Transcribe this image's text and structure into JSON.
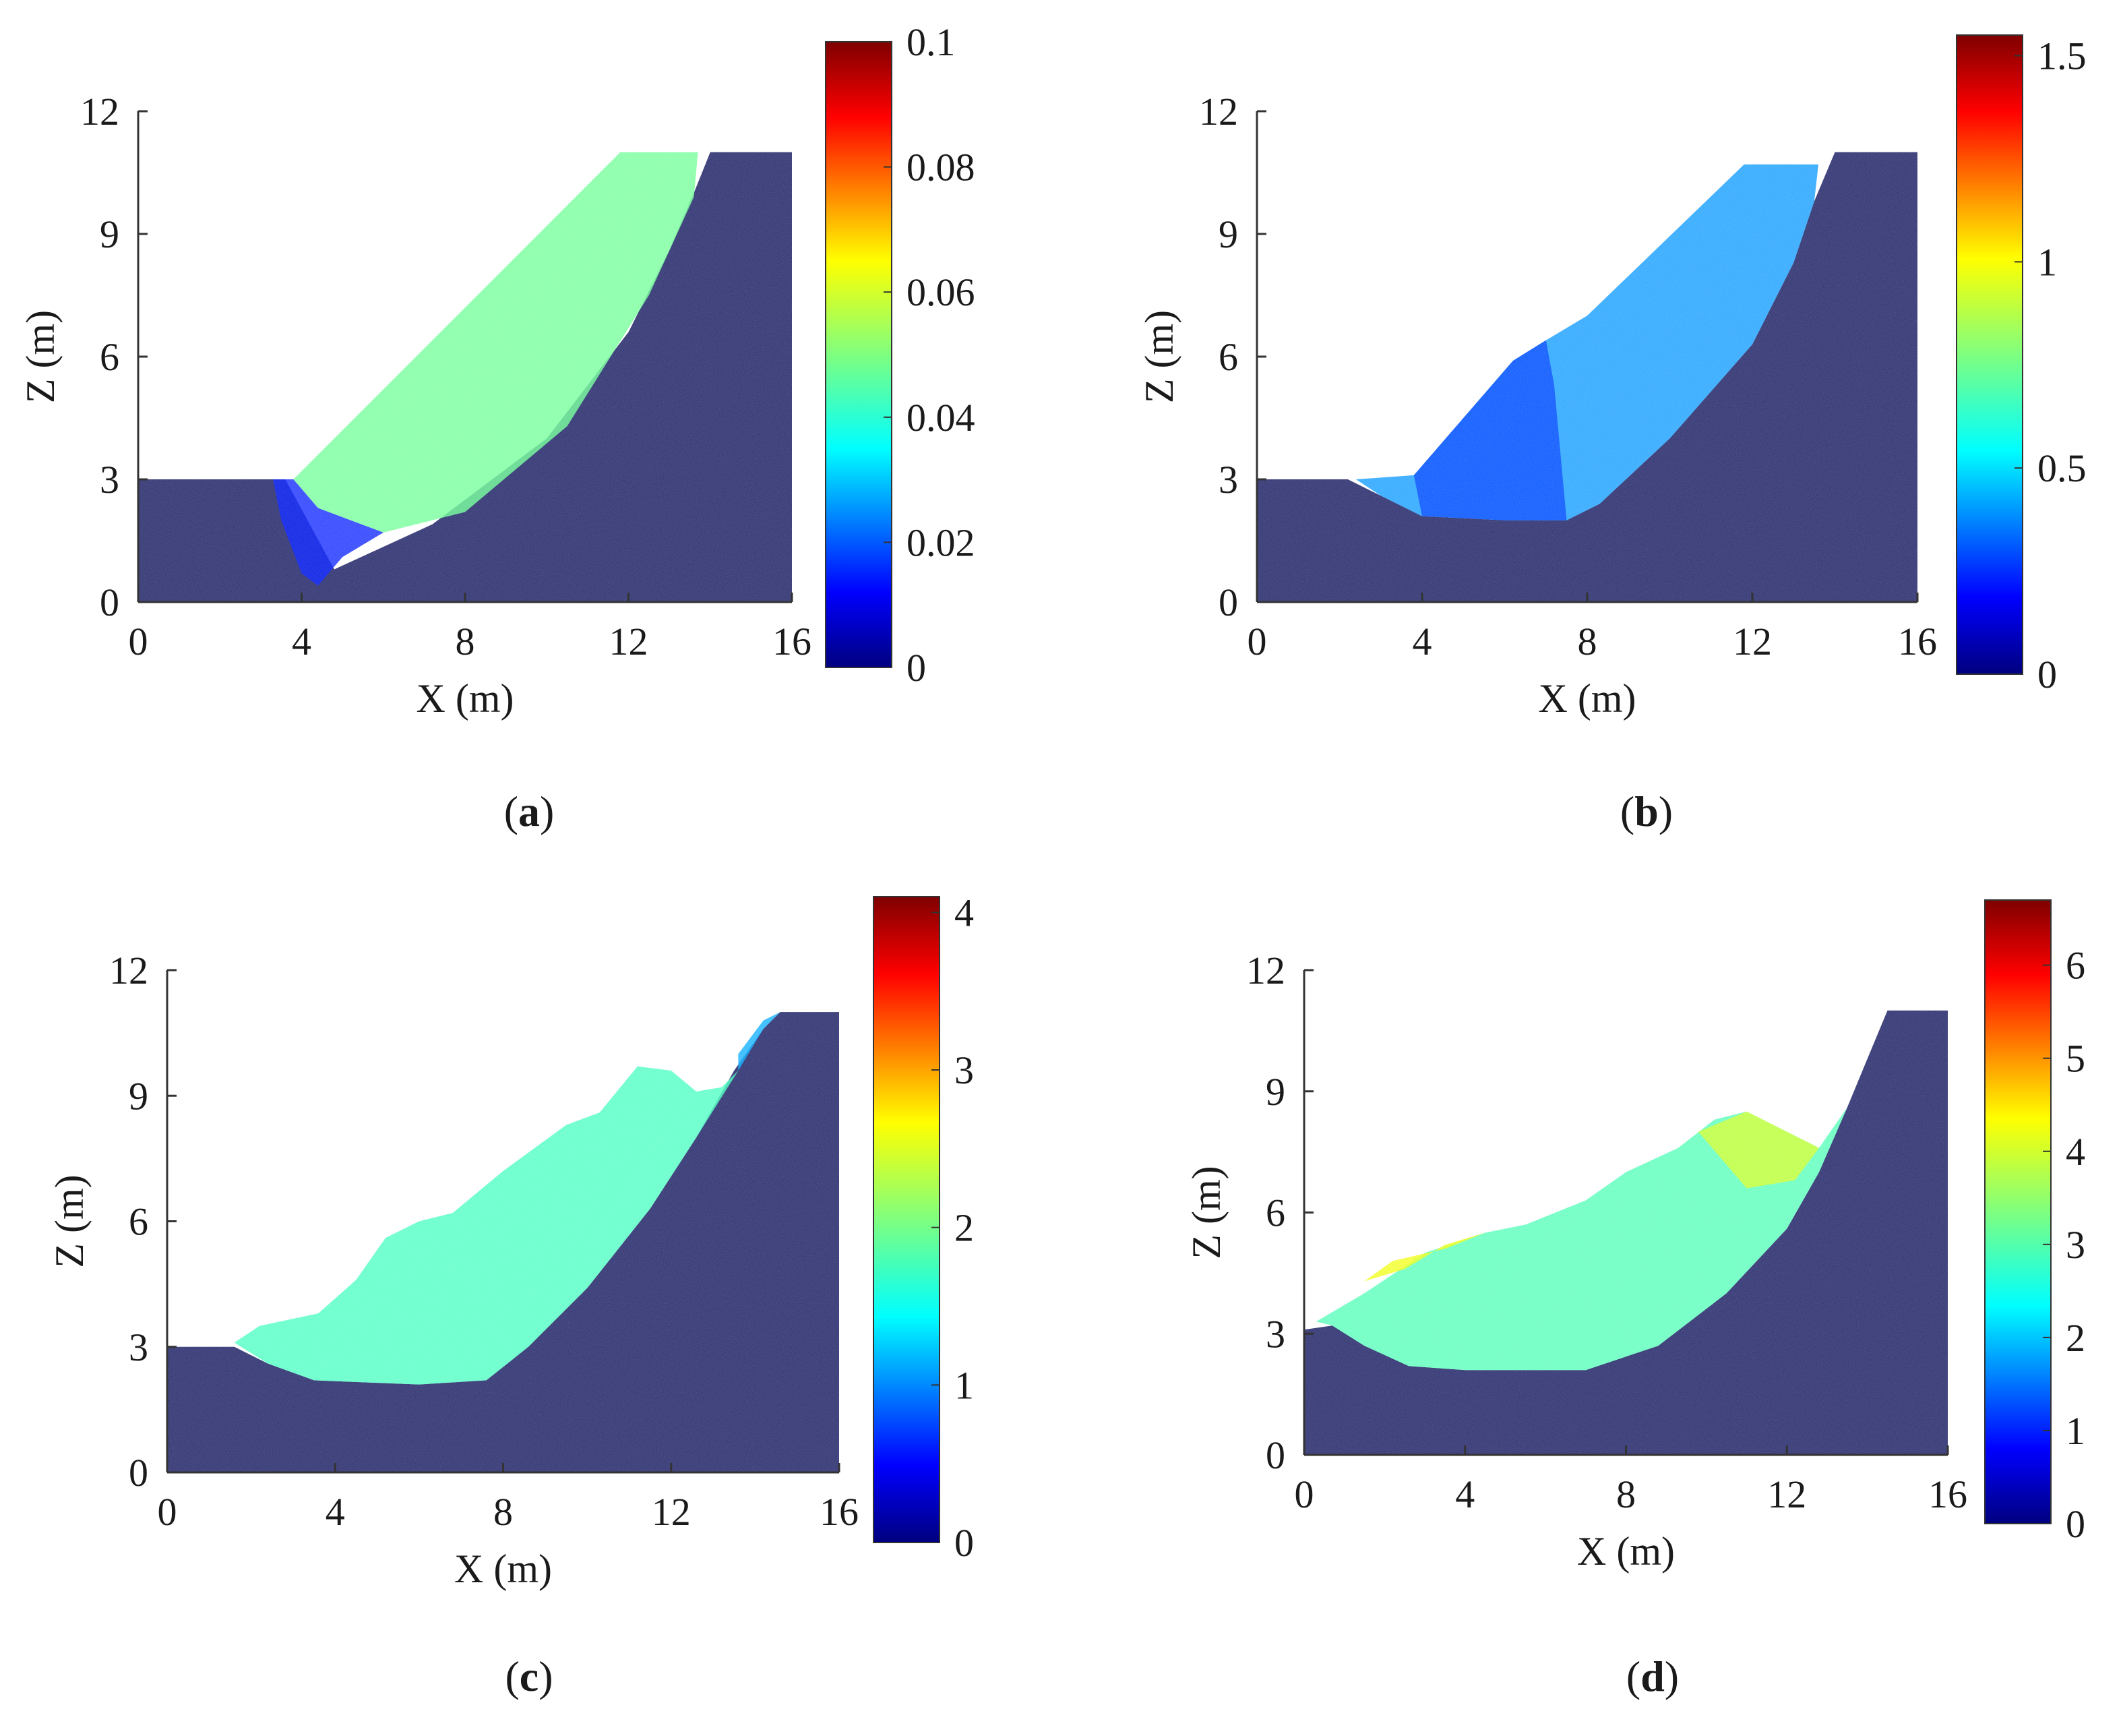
{
  "figure": {
    "colors": {
      "background": "#ffffff",
      "axis": "#333333",
      "stable_soil": "#2b2e6e"
    }
  },
  "chart_data": [
    {
      "type": "heatmap",
      "panel": "a",
      "caption": {
        "open": "(",
        "letter": "a",
        "close": ")"
      },
      "xlabel": "X (m)",
      "ylabel": "Z (m)",
      "xlim": [
        0,
        16
      ],
      "ylim": [
        0,
        12
      ],
      "xticks": [
        "0",
        "4",
        "8",
        "12",
        "16"
      ],
      "yticks": [
        "0",
        "3",
        "6",
        "9",
        "12"
      ],
      "colorbar": {
        "min": 0,
        "max": 0.1,
        "ticks": [
          "0",
          "0.02",
          "0.04",
          "0.06",
          "0.08",
          "0.1"
        ],
        "colormap": "jet"
      },
      "stable_profile": [
        [
          0,
          0
        ],
        [
          0,
          3
        ],
        [
          3.6,
          3
        ],
        [
          4.8,
          0.8
        ],
        [
          7.2,
          1.9
        ],
        [
          10,
          4
        ],
        [
          12,
          6.6
        ],
        [
          13,
          8.6
        ],
        [
          13.6,
          10
        ],
        [
          14,
          11
        ],
        [
          16,
          11
        ],
        [
          16,
          0
        ]
      ],
      "slide_regions": [
        {
          "value": 0.048,
          "polygon": [
            [
              3.8,
              3
            ],
            [
              11.8,
              11
            ],
            [
              13.7,
              11
            ],
            [
              13.6,
              9.9
            ],
            [
              12.5,
              7.5
            ],
            [
              10.5,
              4.3
            ],
            [
              8,
              2.2
            ],
            [
              6,
              1.7
            ],
            [
              4.4,
              2.3
            ]
          ]
        },
        {
          "value": 0.015,
          "polygon": [
            [
              3.3,
              3
            ],
            [
              3.8,
              3
            ],
            [
              4.4,
              2.3
            ],
            [
              6,
              1.7
            ],
            [
              5,
              1.1
            ],
            [
              4.4,
              0.4
            ],
            [
              4,
              0.7
            ],
            [
              3.5,
              2
            ]
          ]
        }
      ]
    },
    {
      "type": "heatmap",
      "panel": "b",
      "caption": {
        "open": "(",
        "letter": "b",
        "close": ")"
      },
      "xlabel": "X (m)",
      "ylabel": "Z (m)",
      "xlim": [
        0,
        16
      ],
      "ylim": [
        0,
        12
      ],
      "xticks": [
        "0",
        "4",
        "8",
        "12",
        "16"
      ],
      "yticks": [
        "0",
        "3",
        "6",
        "9",
        "12"
      ],
      "colorbar": {
        "min": 0,
        "max": 1.55,
        "ticks": [
          "0",
          "0.5",
          "1",
          "1.5"
        ],
        "colormap": "jet"
      },
      "stable_profile": [
        [
          0,
          0
        ],
        [
          0,
          3
        ],
        [
          2.2,
          3
        ],
        [
          3,
          2.6
        ],
        [
          4,
          2.1
        ],
        [
          6,
          2
        ],
        [
          7.5,
          2
        ],
        [
          8.3,
          2.4
        ],
        [
          10,
          4
        ],
        [
          12,
          6.3
        ],
        [
          13,
          8.3
        ],
        [
          13.5,
          9.8
        ],
        [
          14,
          11
        ],
        [
          16,
          11
        ],
        [
          16,
          0
        ]
      ],
      "slide_regions": [
        {
          "value": 0.42,
          "polygon": [
            [
              2.4,
              3
            ],
            [
              3.8,
              3.1
            ],
            [
              6.2,
              5.9
            ],
            [
              7,
              6.4
            ],
            [
              8,
              7
            ],
            [
              11.8,
              10.7
            ],
            [
              13.6,
              10.7
            ],
            [
              13.5,
              9.8
            ],
            [
              13,
              8.3
            ],
            [
              12,
              6.3
            ],
            [
              10,
              4
            ],
            [
              8.3,
              2.4
            ],
            [
              7.5,
              2
            ],
            [
              6,
              2
            ],
            [
              4,
              2.1
            ],
            [
              3,
              2.6
            ]
          ]
        },
        {
          "value": 0.3,
          "polygon": [
            [
              3.8,
              3.1
            ],
            [
              6.2,
              5.9
            ],
            [
              7,
              6.4
            ],
            [
              7.2,
              5.3
            ],
            [
              7.5,
              2
            ],
            [
              6,
              2
            ],
            [
              4,
              2.1
            ]
          ]
        }
      ]
    },
    {
      "type": "heatmap",
      "panel": "c",
      "caption": {
        "open": "(",
        "letter": "c",
        "close": ")"
      },
      "xlabel": "X (m)",
      "ylabel": "Z (m)",
      "xlim": [
        0,
        16
      ],
      "ylim": [
        0,
        12
      ],
      "xticks": [
        "0",
        "4",
        "8",
        "12",
        "16"
      ],
      "yticks": [
        "0",
        "3",
        "6",
        "9",
        "12"
      ],
      "colorbar": {
        "min": 0,
        "max": 4.1,
        "ticks": [
          "0",
          "1",
          "2",
          "3",
          "4"
        ],
        "colormap": "jet"
      },
      "stable_profile": [
        [
          0,
          0
        ],
        [
          0,
          3
        ],
        [
          1.6,
          3
        ],
        [
          2.4,
          2.6
        ],
        [
          3.5,
          2.2
        ],
        [
          6,
          2.1
        ],
        [
          7.6,
          2.2
        ],
        [
          8.6,
          3
        ],
        [
          10,
          4.4
        ],
        [
          11.5,
          6.3
        ],
        [
          12.6,
          8
        ],
        [
          13.5,
          9.6
        ],
        [
          14.2,
          10.6
        ],
        [
          14.6,
          11
        ],
        [
          16,
          11
        ],
        [
          16,
          0
        ]
      ],
      "slide_regions": [
        {
          "value": 1.8,
          "polygon": [
            [
              1.6,
              3.1
            ],
            [
              2.2,
              3.5
            ],
            [
              3.6,
              3.8
            ],
            [
              4.5,
              4.6
            ],
            [
              5.2,
              5.6
            ],
            [
              6,
              6
            ],
            [
              6.8,
              6.2
            ],
            [
              8,
              7.2
            ],
            [
              9.5,
              8.3
            ],
            [
              10.3,
              8.6
            ],
            [
              11.2,
              9.7
            ],
            [
              12,
              9.6
            ],
            [
              12.6,
              9.1
            ],
            [
              13.2,
              9.2
            ],
            [
              13.6,
              9.6
            ],
            [
              12.6,
              8
            ],
            [
              11.5,
              6.3
            ],
            [
              10,
              4.4
            ],
            [
              8.6,
              3
            ],
            [
              7.6,
              2.2
            ],
            [
              6,
              2.1
            ],
            [
              3.5,
              2.2
            ],
            [
              2.4,
              2.6
            ]
          ]
        },
        {
          "value": 1.2,
          "polygon": [
            [
              13.6,
              10
            ],
            [
              14.2,
              10.8
            ],
            [
              14.6,
              11
            ],
            [
              14.2,
              10.6
            ],
            [
              13.6,
              9.6
            ]
          ]
        }
      ]
    },
    {
      "type": "heatmap",
      "panel": "d",
      "caption": {
        "open": "(",
        "letter": "d",
        "close": ")"
      },
      "xlabel": "X (m)",
      "ylabel": "Z (m)",
      "xlim": [
        0,
        16
      ],
      "ylim": [
        0,
        12
      ],
      "xticks": [
        "0",
        "4",
        "8",
        "12",
        "16"
      ],
      "yticks": [
        "0",
        "3",
        "6",
        "9",
        "12"
      ],
      "colorbar": {
        "min": 0,
        "max": 6.7,
        "ticks": [
          "0",
          "1",
          "2",
          "3",
          "4",
          "5",
          "6"
        ],
        "colormap": "jet"
      },
      "stable_profile": [
        [
          0,
          0
        ],
        [
          0,
          3.1
        ],
        [
          0.7,
          3.2
        ],
        [
          1.5,
          2.7
        ],
        [
          2.6,
          2.2
        ],
        [
          4,
          2.1
        ],
        [
          7,
          2.1
        ],
        [
          8.8,
          2.7
        ],
        [
          10.5,
          4
        ],
        [
          12,
          5.6
        ],
        [
          12.8,
          7
        ],
        [
          13.5,
          8.6
        ],
        [
          14,
          9.8
        ],
        [
          14.5,
          11
        ],
        [
          16,
          11
        ],
        [
          16,
          0
        ]
      ],
      "slide_regions": [
        {
          "value": 3.0,
          "polygon": [
            [
              0.3,
              3.3
            ],
            [
              1.5,
              4
            ],
            [
              3,
              5
            ],
            [
              4.5,
              5.5
            ],
            [
              5.5,
              5.7
            ],
            [
              7,
              6.3
            ],
            [
              8,
              7
            ],
            [
              9.3,
              7.6
            ],
            [
              10.2,
              8.3
            ],
            [
              11,
              8.5
            ],
            [
              12,
              8
            ],
            [
              12.8,
              7.6
            ],
            [
              13.5,
              8.6
            ],
            [
              12.8,
              7
            ],
            [
              12,
              5.6
            ],
            [
              10.5,
              4
            ],
            [
              8.8,
              2.7
            ],
            [
              7,
              2.1
            ],
            [
              4,
              2.1
            ],
            [
              2.6,
              2.2
            ],
            [
              1.5,
              2.7
            ],
            [
              0.7,
              3.2
            ]
          ]
        },
        {
          "value": 4.1,
          "polygon": [
            [
              1.5,
              4.3
            ],
            [
              2.5,
              4.6
            ],
            [
              3.5,
              5.2
            ],
            [
              4.5,
              5.5
            ],
            [
              3.5,
              5.1
            ],
            [
              2.2,
              4.8
            ]
          ]
        },
        {
          "value": 3.9,
          "polygon": [
            [
              9.8,
              8
            ],
            [
              11,
              8.5
            ],
            [
              12,
              8
            ],
            [
              12.8,
              7.6
            ],
            [
              12.2,
              6.8
            ],
            [
              11,
              6.6
            ]
          ]
        }
      ]
    }
  ]
}
